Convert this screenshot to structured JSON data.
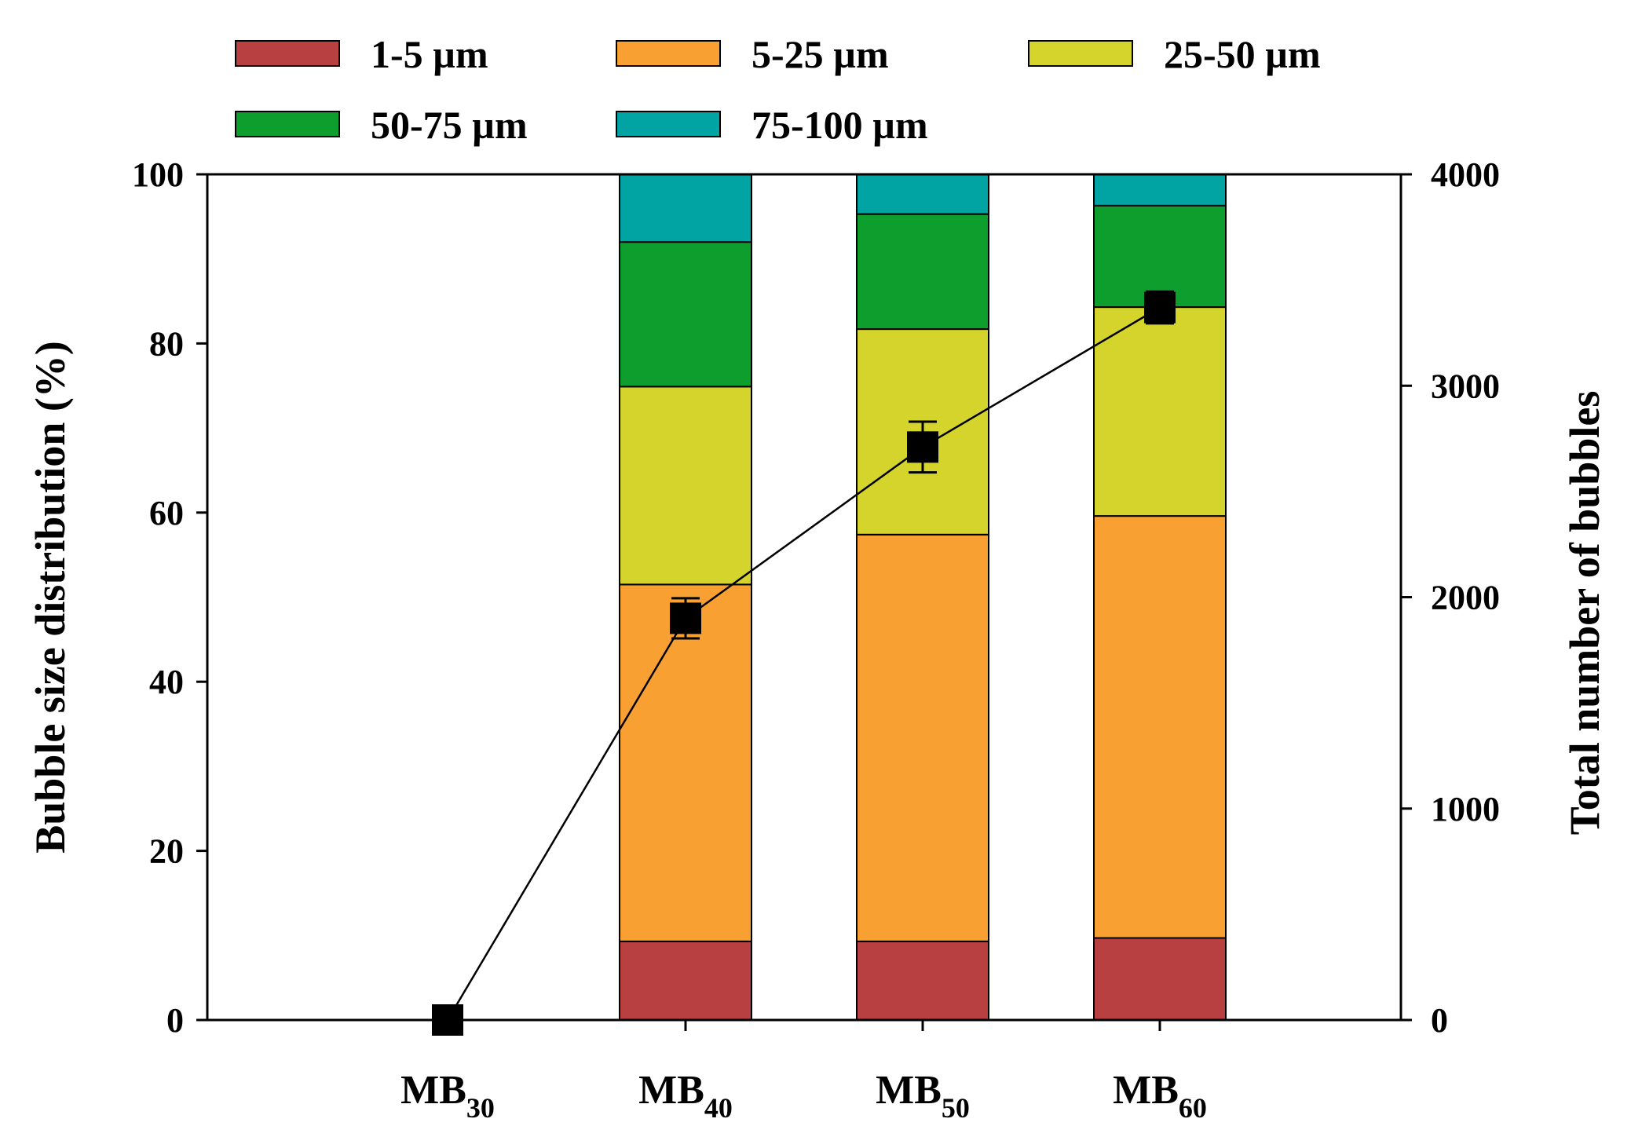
{
  "chart_data": {
    "type": "bar",
    "stacked": true,
    "categories": [
      {
        "base": "MB",
        "sub": "30"
      },
      {
        "base": "MB",
        "sub": "40"
      },
      {
        "base": "MB",
        "sub": "50"
      },
      {
        "base": "MB",
        "sub": "60"
      }
    ],
    "series": [
      {
        "name": "1-5 µm",
        "color": "#b94040",
        "values": [
          0,
          9.3,
          9.3,
          9.7
        ]
      },
      {
        "name": "5-25 µm",
        "color": "#f9a033",
        "values": [
          0,
          42.2,
          48.1,
          49.9
        ]
      },
      {
        "name": "25-50 µm",
        "color": "#d4d42c",
        "values": [
          0,
          23.4,
          24.3,
          24.7
        ]
      },
      {
        "name": "50-75 µm",
        "color": "#0e9e2e",
        "values": [
          0,
          17.1,
          13.6,
          12.0
        ]
      },
      {
        "name": "75-100 µm",
        "color": "#01a3a3",
        "values": [
          0,
          8.0,
          4.7,
          3.7
        ]
      }
    ],
    "line_series": {
      "axis": "right",
      "values": [
        0,
        1900,
        2710,
        3370
      ],
      "errors": [
        0,
        95,
        120,
        75
      ],
      "color": "#000000",
      "marker": "square"
    },
    "ylabel": "Bubble size distribution (%)",
    "y2label": "Total number of bubbles",
    "ylim": [
      0,
      100
    ],
    "y2lim": [
      0,
      4000
    ],
    "yticks": [
      "0",
      "20",
      "40",
      "60",
      "80",
      "100"
    ],
    "y2ticks": [
      "0",
      "1000",
      "2000",
      "3000",
      "4000"
    ],
    "legend_position": "top",
    "grid": false
  }
}
